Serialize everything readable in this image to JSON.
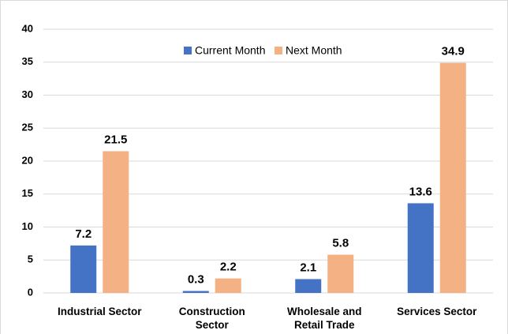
{
  "chart_data": {
    "type": "bar",
    "categories": [
      "Industrial Sector",
      "Construction Sector",
      "Wholesale and Retail Trade",
      "Services Sector"
    ],
    "series": [
      {
        "name": "Current Month",
        "color": "#4472c4",
        "values": [
          7.2,
          0.3,
          2.1,
          13.6
        ]
      },
      {
        "name": "Next Month",
        "color": "#f4b183",
        "values": [
          21.5,
          2.2,
          5.8,
          34.9
        ]
      }
    ],
    "ylim": [
      0,
      40
    ],
    "yticks": [
      0,
      5,
      10,
      15,
      20,
      25,
      30,
      35,
      40
    ],
    "grid": true,
    "legend": "top"
  }
}
